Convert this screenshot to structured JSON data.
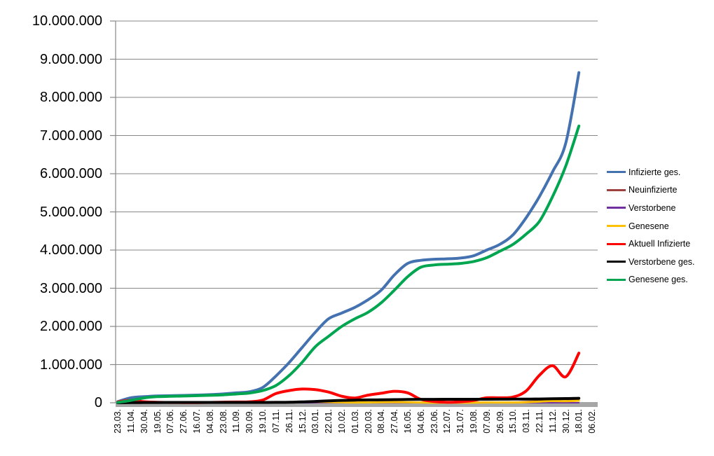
{
  "chart_data": {
    "type": "line",
    "title": "",
    "xlabel": "",
    "ylabel": "",
    "ylim": [
      0,
      10000000
    ],
    "y_tick_step": 1000000,
    "y_tick_labels": [
      "0",
      "1.000.000",
      "2.000.000",
      "3.000.000",
      "4.000.000",
      "5.000.000",
      "6.000.000",
      "7.000.000",
      "8.000.000",
      "9.000.000",
      "10.000.000"
    ],
    "grid": true,
    "legend_position": "right",
    "categories": [
      "23.03.",
      "11.04.",
      "30.04.",
      "19.05.",
      "07.06.",
      "27.06.",
      "16.07.",
      "04.08.",
      "23.08.",
      "11.09.",
      "30.09.",
      "19.10.",
      "07.11.",
      "26.11.",
      "15.12.",
      "03.01.",
      "22.01.",
      "10.02.",
      "01.03.",
      "20.03.",
      "08.04.",
      "27.04.",
      "16.05.",
      "04.06.",
      "23.06.",
      "12.07.",
      "31.07.",
      "19.08.",
      "07.09.",
      "26.09.",
      "15.10.",
      "03.11.",
      "22.11.",
      "11.12.",
      "30.12.",
      "18.01.",
      "06.02."
    ],
    "series": [
      {
        "name": "Infizierte ges.",
        "color": "#4472B0",
        "width": 4,
        "values": [
          30000,
          130000,
          160000,
          180000,
          185000,
          193000,
          201000,
          212000,
          232000,
          260000,
          290000,
          400000,
          700000,
          1050000,
          1450000,
          1850000,
          2200000,
          2350000,
          2500000,
          2700000,
          2950000,
          3350000,
          3650000,
          3730000,
          3760000,
          3770000,
          3790000,
          3850000,
          4000000,
          4150000,
          4400000,
          4850000,
          5400000,
          6050000,
          6800000,
          8650000,
          null
        ]
      },
      {
        "name": "Neuinfizierte",
        "color": "#9E413E",
        "width": 2.5,
        "values": [
          4000,
          4000,
          2000,
          1000,
          500,
          500,
          500,
          1000,
          1500,
          1500,
          2000,
          7000,
          18000,
          22000,
          25000,
          22000,
          16000,
          9000,
          8000,
          13000,
          20000,
          21000,
          12000,
          5000,
          1000,
          1500,
          2000,
          8000,
          11000,
          8000,
          10000,
          25000,
          50000,
          60000,
          45000,
          90000,
          null
        ]
      },
      {
        "name": "Verstorbene",
        "color": "#7030A0",
        "width": 2,
        "values": [
          100,
          200,
          200,
          100,
          50,
          30,
          20,
          30,
          40,
          40,
          50,
          100,
          200,
          400,
          700,
          900,
          800,
          600,
          400,
          200,
          200,
          300,
          200,
          100,
          50,
          30,
          30,
          50,
          100,
          100,
          100,
          200,
          300,
          400,
          400,
          600,
          null
        ]
      },
      {
        "name": "Genesene",
        "color": "#FFC000",
        "width": 3,
        "values": [
          2000,
          4000,
          3000,
          1000,
          600,
          500,
          500,
          700,
          1000,
          1200,
          1500,
          4000,
          12000,
          18000,
          22000,
          25000,
          18000,
          11000,
          8000,
          10000,
          15000,
          17000,
          14000,
          7000,
          2000,
          1000,
          2000,
          4000,
          8000,
          7000,
          8000,
          15000,
          30000,
          45000,
          40000,
          55000,
          null
        ]
      },
      {
        "name": "Aktuell Infizierte",
        "color": "#FF0000",
        "width": 4,
        "values": [
          22000,
          65000,
          28000,
          12000,
          8000,
          6000,
          6000,
          9000,
          16000,
          21000,
          26000,
          70000,
          240000,
          320000,
          360000,
          345000,
          280000,
          170000,
          125000,
          200000,
          250000,
          300000,
          260000,
          90000,
          35000,
          15000,
          25000,
          60000,
          130000,
          130000,
          150000,
          310000,
          720000,
          970000,
          680000,
          1300000,
          null
        ]
      },
      {
        "name": "Verstorbene ges.",
        "color": "#000000",
        "width": 4,
        "values": [
          200,
          3000,
          6500,
          8000,
          8700,
          9000,
          9100,
          9200,
          9300,
          9400,
          9500,
          9800,
          11000,
          15000,
          23000,
          35000,
          51000,
          63000,
          70000,
          74500,
          78000,
          82000,
          86000,
          89000,
          90500,
          91200,
          91700,
          92000,
          92500,
          93200,
          94500,
          96000,
          99500,
          104000,
          111000,
          117000,
          null
        ]
      },
      {
        "name": "Genesene ges.",
        "color": "#00A550",
        "width": 4,
        "values": [
          10000,
          62000,
          126000,
          160000,
          168000,
          177000,
          186000,
          194000,
          207000,
          230000,
          255000,
          320000,
          450000,
          710000,
          1060000,
          1470000,
          1740000,
          2000000,
          2200000,
          2370000,
          2620000,
          2950000,
          3300000,
          3550000,
          3610000,
          3630000,
          3650000,
          3700000,
          3800000,
          3970000,
          4150000,
          4420000,
          4750000,
          5400000,
          6200000,
          7250000,
          null
        ]
      }
    ],
    "style": {
      "gridline_color": "#878787",
      "axis_line_color": "#878787",
      "baseline_strip_color": "#A6A6A6",
      "background": "#FFFFFF"
    }
  }
}
